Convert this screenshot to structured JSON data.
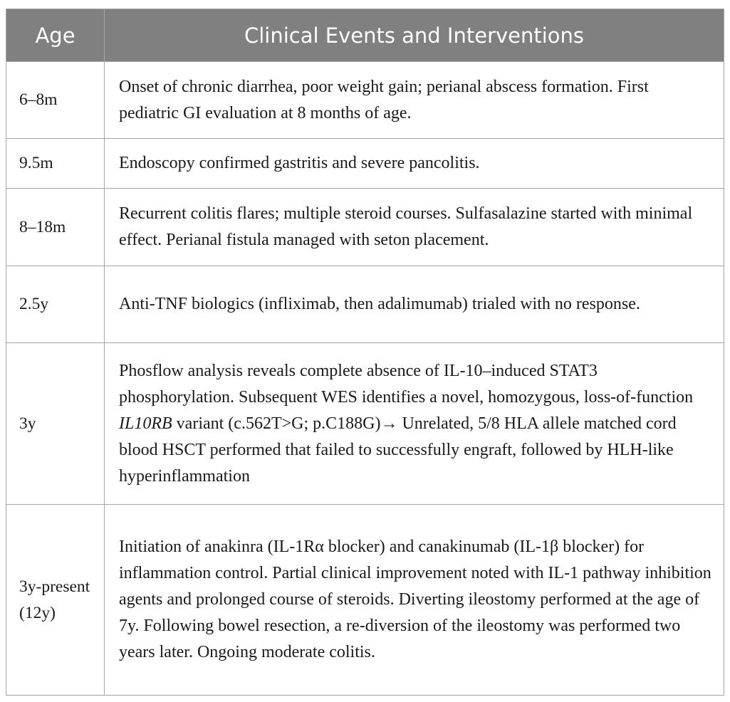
{
  "table": {
    "header": [
      "Age",
      "Clinical Events and Interventions"
    ],
    "rows": [
      [
        "6–8m",
        "Onset of chronic diarrhea, poor weight gain; perianal abscess formation. First pediatric GI evaluation at 8 months of age."
      ],
      [
        "9.5m",
        "Endoscopy confirmed gastritis and severe pancolitis."
      ],
      [
        "8–18m",
        "Recurrent colitis flares; multiple steroid courses. Sulfasalazine started with minimal effect. Perianal fistula managed with seton placement."
      ],
      [
        "2.5y",
        "Anti-TNF biologics (infliximab, then adalimumab) trialed with no response."
      ],
      [
        "3y",
        [
          {
            "text": "Phosflow analysis reveals complete absence of IL-10–induced STAT3 phosphorylation. Subsequent WES identifies a novel, homozygous, loss-of-function "
          },
          {
            "text": "IL10RB",
            "italic": true
          },
          {
            "text": " variant (c.562T>G; p.C188G)→ Unrelated, 5/8 HLA allele matched cord blood HSCT performed that failed to successfully engraft, followed by HLH-like hyperinflammation"
          }
        ]
      ],
      [
        "3y-present (12y)",
        "Initiation of anakinra (IL-1Rα blocker) and canakinumab (IL-1β blocker) for inflammation control. Partial clinical improvement noted with IL-1 pathway inhibition agents and prolonged course of steroids. Diverting ileostomy performed at the age of 7y. Following bowel resection, a re-diversion of the ileostomy was performed two years later. Ongoing moderate colitis."
      ]
    ]
  }
}
